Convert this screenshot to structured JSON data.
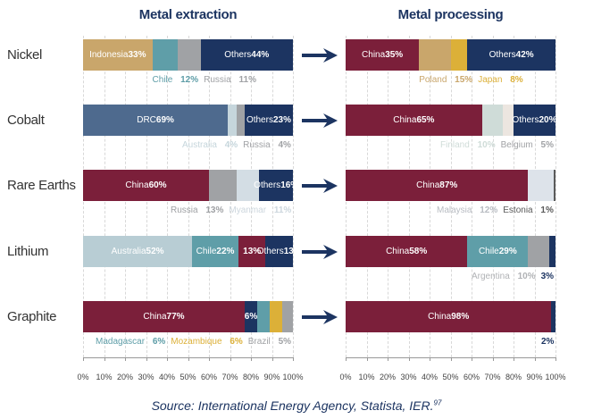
{
  "chart_data": [
    {
      "type": "bar",
      "stacked": true,
      "orientation": "horizontal",
      "title": "Metal extraction",
      "categories": [
        "Nickel",
        "Cobalt",
        "Rare Earths",
        "Lithium",
        "Graphite"
      ],
      "xlim": [
        0,
        100
      ],
      "x_ticks": [
        "0%",
        "10%",
        "20%",
        "30%",
        "40%",
        "50%",
        "60%",
        "70%",
        "80%",
        "90%",
        "100%"
      ],
      "grid": true,
      "rows": [
        {
          "segments": [
            {
              "name": "Indonesia",
              "value": 33,
              "color": "#c9a66b",
              "pos": "in"
            },
            {
              "name": "Chile",
              "value": 12,
              "color": "#5f9ea8",
              "pos": "below",
              "text_color": "#5f9ea8"
            },
            {
              "name": "Russia",
              "value": 11,
              "color": "#a0a2a5",
              "pos": "below",
              "text_color": "#a0a2a5"
            },
            {
              "name": "Others",
              "value": 44,
              "color": "#1c3461",
              "pos": "in"
            }
          ]
        },
        {
          "segments": [
            {
              "name": "DRC",
              "value": 69,
              "color": "#4e6a8e",
              "pos": "in"
            },
            {
              "name": "Australia",
              "value": 4,
              "color": "#c6d6dc",
              "pos": "below",
              "text_color": "#c6d6dc"
            },
            {
              "name": "Russia",
              "value": 4,
              "color": "#a0a2a5",
              "pos": "below",
              "text_color": "#a0a2a5"
            },
            {
              "name": "Others",
              "value": 23,
              "color": "#1c3461",
              "pos": "in",
              "wrap": true
            }
          ]
        },
        {
          "segments": [
            {
              "name": "China",
              "value": 60,
              "color": "#7b1f3a",
              "pos": "in"
            },
            {
              "name": "Russia",
              "value": 13,
              "color": "#a0a2a5",
              "pos": "below",
              "text_color": "#a0a2a5"
            },
            {
              "name": "Myanmar",
              "value": 11,
              "color": "#d3dde4",
              "pos": "below",
              "text_color": "#ccd6dd"
            },
            {
              "name": "Others",
              "value": 16,
              "color": "#1c3461",
              "pos": "in",
              "wrap": true
            }
          ]
        },
        {
          "segments": [
            {
              "name": "Australia",
              "value": 52,
              "color": "#b8cdd4",
              "pos": "in"
            },
            {
              "name": "Chile",
              "value": 22,
              "color": "#5f9ea8",
              "pos": "in"
            },
            {
              "name": "",
              "value": 13,
              "color": "#7b1f3a",
              "pos": "in"
            },
            {
              "name": "Others",
              "value": 13,
              "color": "#1c3461",
              "pos": "in",
              "wrap": true
            }
          ]
        },
        {
          "segments": [
            {
              "name": "China",
              "value": 77,
              "color": "#7b1f3a",
              "pos": "in"
            },
            {
              "name": "",
              "value": 6,
              "color": "#1c3461",
              "pos": "in"
            },
            {
              "name": "Madagascar",
              "value": 6,
              "color": "#5f9ea8",
              "pos": "below",
              "text_color": "#5f9ea8"
            },
            {
              "name": "Mozambique",
              "value": 6,
              "color": "#dcb038",
              "pos": "below",
              "text_color": "#dcb038"
            },
            {
              "name": "Brazil",
              "value": 5,
              "color": "#a0a2a5",
              "pos": "below",
              "text_color": "#a0a2a5"
            }
          ]
        }
      ]
    },
    {
      "type": "bar",
      "stacked": true,
      "orientation": "horizontal",
      "title": "Metal processing",
      "categories": [
        "Nickel",
        "Cobalt",
        "Rare Earths",
        "Lithium",
        "Graphite"
      ],
      "xlim": [
        0,
        100
      ],
      "x_ticks": [
        "0%",
        "10%",
        "20%",
        "30%",
        "40%",
        "50%",
        "60%",
        "70%",
        "80%",
        "90%",
        "100%"
      ],
      "grid": true,
      "rows": [
        {
          "segments": [
            {
              "name": "China",
              "value": 35,
              "color": "#7b1f3a",
              "pos": "in"
            },
            {
              "name": "Poland",
              "value": 15,
              "color": "#c9a66b",
              "pos": "below",
              "text_color": "#c9a66b"
            },
            {
              "name": "Japan",
              "value": 8,
              "color": "#dcb038",
              "pos": "below",
              "text_color": "#dcb038"
            },
            {
              "name": "Others",
              "value": 42,
              "color": "#1c3461",
              "pos": "in"
            }
          ]
        },
        {
          "segments": [
            {
              "name": "China",
              "value": 65,
              "color": "#7b1f3a",
              "pos": "in"
            },
            {
              "name": "Finland",
              "value": 10,
              "color": "#cfdcd8",
              "pos": "below",
              "text_color": "#cfdcd8"
            },
            {
              "name": "Belgium",
              "value": 5,
              "color": "#ece6e0",
              "pos": "below",
              "text_color": "#a0a2a5"
            },
            {
              "name": "Others",
              "value": 20,
              "color": "#1c3461",
              "pos": "in",
              "wrap": true
            }
          ]
        },
        {
          "segments": [
            {
              "name": "China",
              "value": 87,
              "color": "#7b1f3a",
              "pos": "in"
            },
            {
              "name": "Malaysia",
              "value": 12,
              "color": "#dde3ea",
              "pos": "below",
              "text_color": "#b8bcc2"
            },
            {
              "name": "Estonia",
              "value": 1,
              "color": "#5a5a5a",
              "pos": "below",
              "text_color": "#5a5a5a"
            }
          ]
        },
        {
          "segments": [
            {
              "name": "China",
              "value": 58,
              "color": "#7b1f3a",
              "pos": "in"
            },
            {
              "name": "Chile",
              "value": 29,
              "color": "#5f9ea8",
              "pos": "in"
            },
            {
              "name": "Argentina",
              "value": 10,
              "color": "#a0a2a5",
              "pos": "below",
              "text_color": "#b0b2b5"
            },
            {
              "name": "",
              "value": 3,
              "color": "#1c3461",
              "pos": "below",
              "text_color": "#1c3461"
            }
          ]
        },
        {
          "segments": [
            {
              "name": "China",
              "value": 98,
              "color": "#7b1f3a",
              "pos": "in"
            },
            {
              "name": "",
              "value": 2,
              "color": "#1c3461",
              "pos": "below",
              "text_color": "#1c3461"
            }
          ]
        }
      ]
    }
  ],
  "source": "Source: International Energy Agency, Statista, IER.",
  "source_ref": "97",
  "arrow_color": "#1c3461"
}
